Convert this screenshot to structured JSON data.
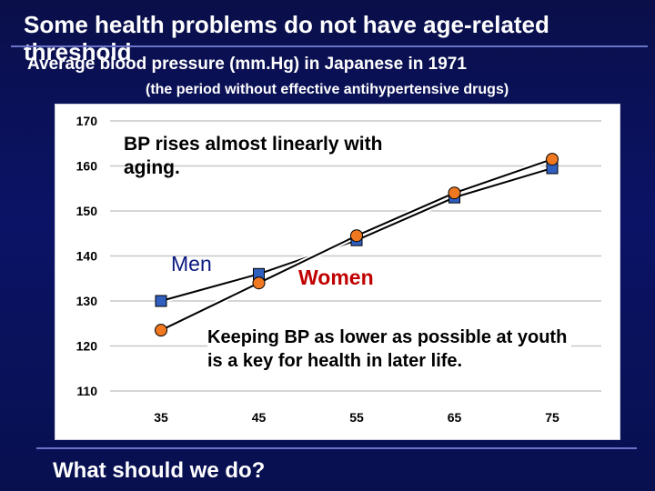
{
  "slide": {
    "title": "Some health problems do not have age-related threshold",
    "subtitle": "Average blood pressure (mm.Hg) in Japanese in 1971",
    "subtitle_note": "(the period without effective antihypertensive drugs)",
    "question": "What should we do?"
  },
  "annotations": {
    "bp_rises": "BP rises almost linearly with aging.",
    "men": "Men",
    "women": "Women",
    "keeping": "Keeping BP as lower as possible at youth is a key for health in later life."
  },
  "colors": {
    "background": "#0b1366",
    "men_marker": "#2f5fbf",
    "women_marker": "#f07820",
    "men_label": "#0a1a80",
    "women_label": "#c00000"
  },
  "chart_data": {
    "type": "line",
    "x": [
      35,
      45,
      55,
      65,
      75
    ],
    "ylim": [
      110,
      170
    ],
    "yticks": [
      110,
      120,
      130,
      140,
      150,
      160,
      170
    ],
    "grid": true,
    "series": [
      {
        "name": "Men",
        "values": [
          130,
          136,
          143.5,
          153,
          159.5
        ],
        "marker": "square"
      },
      {
        "name": "Women",
        "values": [
          123.5,
          134,
          144.5,
          154,
          161.5
        ],
        "marker": "circle"
      }
    ]
  }
}
